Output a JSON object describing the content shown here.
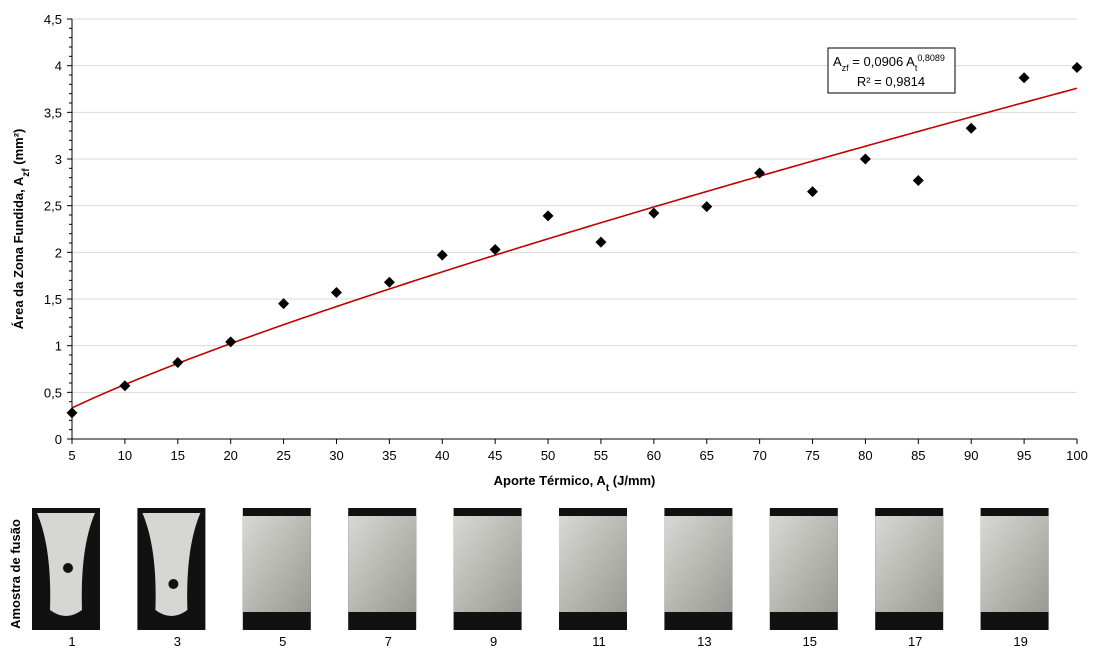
{
  "chart_data": {
    "type": "scatter",
    "x_label": {
      "text": "Aporte Térmico, A",
      "sub": "t",
      "unit": " (J/mm)"
    },
    "y_label": {
      "text": "Área da Zona Fundida, A",
      "sub": "zf",
      "unit": " (mm²)"
    },
    "x": [
      5,
      10,
      15,
      20,
      25,
      30,
      35,
      40,
      45,
      50,
      55,
      60,
      65,
      70,
      75,
      80,
      85,
      90,
      95,
      100
    ],
    "series": [
      {
        "color": "#000000",
        "values": [
          0.28,
          0.57,
          0.82,
          1.04,
          1.45,
          1.57,
          1.68,
          1.97,
          2.03,
          2.39,
          2.11,
          2.42,
          2.49,
          2.85,
          2.65,
          3.0,
          2.77,
          3.33,
          3.87,
          3.98
        ]
      }
    ],
    "fit": {
      "coefficient": 0.0906,
      "exponent": 0.8089,
      "color": "#c00000",
      "equation": {
        "lhs": "A",
        "lhs_sub": "zf",
        "rhs": " = 0,0906 A",
        "rhs_sub": "t",
        "sup": "0,8089"
      },
      "r2_label": "R² = 0,9814"
    },
    "xlim": [
      5,
      100
    ],
    "xticks": [
      5,
      10,
      15,
      20,
      25,
      30,
      35,
      40,
      45,
      50,
      55,
      60,
      65,
      70,
      75,
      80,
      85,
      90,
      95,
      100
    ],
    "ylim": [
      0,
      4.5
    ],
    "yticks": [
      0,
      {
        "value": 0.5,
        "label": "0,5"
      },
      1,
      {
        "value": 1.5,
        "label": "1,5"
      },
      2,
      {
        "value": 2.5,
        "label": "2,5"
      },
      3,
      {
        "value": 3.5,
        "label": "3,5"
      },
      4,
      {
        "value": 4.5,
        "label": "4,5"
      }
    ],
    "grid": true
  },
  "samples": {
    "label": "Amostra de fusão",
    "numbers": [
      "1",
      "3",
      "5",
      "7",
      "9",
      "11",
      "13",
      "15",
      "17",
      "19"
    ]
  }
}
